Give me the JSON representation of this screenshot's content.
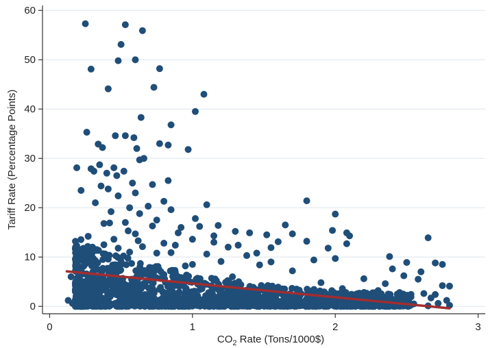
{
  "chart_data": {
    "type": "scatter",
    "title": "",
    "xlabel": "CO₂ Rate (Tons/1000$)",
    "ylabel": "Tariff Rate (Percentage Points)",
    "xlim": [
      -0.05,
      3.05
    ],
    "ylim": [
      -1.5,
      61
    ],
    "xticks": [
      0,
      1,
      2,
      3
    ],
    "yticks": [
      0,
      10,
      20,
      30,
      40,
      50,
      60
    ],
    "grid": "horizontal",
    "legend": "none",
    "colors": {
      "points": "#1f4e79",
      "fit": "#a12d2f",
      "grid": "#dfe8ef",
      "axis": "#333333"
    },
    "series": [
      {
        "points": [
          [
            0.25,
            57.3
          ],
          [
            0.53,
            57.1
          ],
          [
            0.65,
            55.9
          ],
          [
            0.5,
            53.1
          ],
          [
            0.48,
            49.8
          ],
          [
            0.6,
            50.0
          ],
          [
            0.29,
            48.1
          ],
          [
            0.77,
            48.2
          ],
          [
            0.73,
            44.4
          ],
          [
            0.41,
            44.1
          ],
          [
            1.08,
            43.0
          ],
          [
            1.02,
            39.5
          ],
          [
            0.64,
            38.3
          ],
          [
            0.85,
            36.8
          ],
          [
            0.26,
            35.3
          ],
          [
            0.46,
            34.6
          ],
          [
            0.53,
            34.6
          ],
          [
            0.59,
            34.2
          ],
          [
            0.77,
            33.0
          ],
          [
            0.83,
            32.7
          ],
          [
            0.34,
            32.9
          ],
          [
            0.37,
            32.2
          ],
          [
            0.61,
            32.0
          ],
          [
            0.97,
            31.8
          ],
          [
            0.66,
            30.0
          ],
          [
            0.63,
            29.7
          ],
          [
            0.35,
            28.7
          ],
          [
            0.45,
            28.1
          ],
          [
            0.29,
            27.9
          ],
          [
            0.19,
            28.1
          ],
          [
            0.31,
            27.4
          ],
          [
            0.4,
            27.0
          ],
          [
            0.52,
            27.4
          ],
          [
            0.47,
            26.5
          ],
          [
            0.83,
            25.5
          ],
          [
            0.58,
            25.0
          ],
          [
            0.72,
            24.7
          ],
          [
            0.36,
            24.4
          ],
          [
            0.41,
            23.8
          ],
          [
            0.22,
            23.5
          ],
          [
            0.6,
            23.0
          ],
          [
            0.48,
            22.4
          ],
          [
            0.8,
            21.3
          ],
          [
            0.32,
            21.0
          ],
          [
            0.69,
            20.3
          ],
          [
            0.56,
            20.0
          ],
          [
            1.1,
            20.6
          ],
          [
            0.85,
            19.6
          ],
          [
            0.43,
            19.2
          ],
          [
            0.63,
            18.8
          ],
          [
            1.8,
            21.4
          ],
          [
            2.0,
            18.7
          ],
          [
            1.02,
            17.8
          ],
          [
            0.75,
            17.5
          ],
          [
            0.53,
            17.0
          ],
          [
            0.38,
            16.8
          ],
          [
            1.18,
            16.4
          ],
          [
            1.05,
            16.2
          ],
          [
            0.92,
            16.0
          ],
          [
            1.65,
            16.5
          ],
          [
            1.98,
            15.4
          ],
          [
            1.3,
            15.2
          ],
          [
            1.4,
            14.9
          ],
          [
            1.52,
            14.5
          ],
          [
            1.7,
            14.7
          ],
          [
            2.08,
            14.9
          ],
          [
            2.1,
            14.3
          ],
          [
            0.27,
            14.2
          ],
          [
            0.45,
            13.6
          ],
          [
            0.62,
            13.3
          ],
          [
            1.15,
            13.0
          ],
          [
            1.6,
            13.1
          ],
          [
            1.8,
            13.2
          ],
          [
            2.08,
            12.7
          ],
          [
            2.65,
            13.9
          ],
          [
            0.88,
            12.4
          ],
          [
            1.25,
            12.0
          ],
          [
            1.55,
            11.9
          ],
          [
            1.95,
            11.8
          ],
          [
            0.33,
            11.5
          ],
          [
            0.56,
            11.0
          ],
          [
            0.75,
            10.8
          ],
          [
            1.1,
            10.6
          ],
          [
            1.38,
            10.3
          ],
          [
            2.38,
            10.1
          ],
          [
            2.0,
            9.7
          ],
          [
            1.85,
            9.4
          ],
          [
            2.5,
            8.9
          ],
          [
            2.7,
            8.8
          ],
          [
            2.75,
            8.5
          ],
          [
            1.47,
            8.4
          ],
          [
            0.95,
            8.2
          ],
          [
            2.4,
            7.6
          ],
          [
            1.7,
            7.2
          ],
          [
            2.6,
            7.0
          ],
          [
            0.43,
            7.0
          ],
          [
            2.48,
            6.2
          ],
          [
            1.28,
            6.0
          ],
          [
            2.2,
            5.6
          ],
          [
            2.58,
            5.5
          ],
          [
            0.15,
            6.0
          ],
          [
            0.18,
            4.3
          ],
          [
            1.9,
            4.8
          ],
          [
            2.35,
            4.6
          ],
          [
            2.75,
            4.2
          ],
          [
            2.8,
            4.1
          ],
          [
            1.6,
            3.9
          ],
          [
            2.05,
            3.6
          ],
          [
            2.3,
            3.2
          ],
          [
            2.45,
            2.8
          ],
          [
            2.62,
            2.6
          ],
          [
            2.7,
            2.4
          ],
          [
            2.53,
            1.9
          ],
          [
            2.67,
            1.7
          ],
          [
            2.78,
            1.2
          ],
          [
            0.13,
            1.2
          ],
          [
            0.16,
            0.6
          ],
          [
            0.22,
            1.0
          ],
          [
            1.75,
            2.4
          ],
          [
            1.22,
            2.6
          ],
          [
            1.9,
            1.6
          ],
          [
            2.15,
            1.4
          ],
          [
            2.4,
            0.8
          ],
          [
            2.55,
            0.5
          ],
          [
            2.72,
            0.6
          ],
          [
            2.8,
            0.2
          ],
          [
            2.65,
            0.1
          ],
          [
            0.3,
            9.3
          ],
          [
            0.5,
            8.5
          ],
          [
            0.7,
            7.9
          ],
          [
            0.38,
            12.5
          ],
          [
            0.6,
            14.7
          ],
          [
            0.9,
            14.9
          ],
          [
            0.8,
            12.8
          ],
          [
            1.0,
            13.6
          ],
          [
            0.25,
            10.3
          ],
          [
            0.3,
            12.0
          ],
          [
            0.2,
            9.5
          ],
          [
            0.55,
            15.3
          ],
          [
            0.72,
            16.3
          ],
          [
            0.42,
            16.9
          ],
          [
            0.65,
            12.1
          ],
          [
            0.48,
            11.8
          ],
          [
            0.85,
            10.9
          ],
          [
            1.2,
            9.1
          ],
          [
            1.0,
            8.5
          ],
          [
            1.15,
            14.3
          ],
          [
            1.32,
            12.4
          ],
          [
            1.45,
            10.8
          ],
          [
            1.55,
            9.0
          ],
          [
            0.88,
            6.9
          ],
          [
            0.62,
            6.6
          ],
          [
            0.35,
            6.1
          ],
          [
            0.2,
            5.0
          ],
          [
            0.25,
            3.6
          ],
          [
            0.3,
            4.6
          ],
          [
            0.45,
            5.4
          ]
        ]
      }
    ],
    "cluster_note_hidden": [],
    "fit_line": {
      "x": [
        0.12,
        2.8
      ],
      "y": [
        7.1,
        -0.4
      ]
    }
  }
}
